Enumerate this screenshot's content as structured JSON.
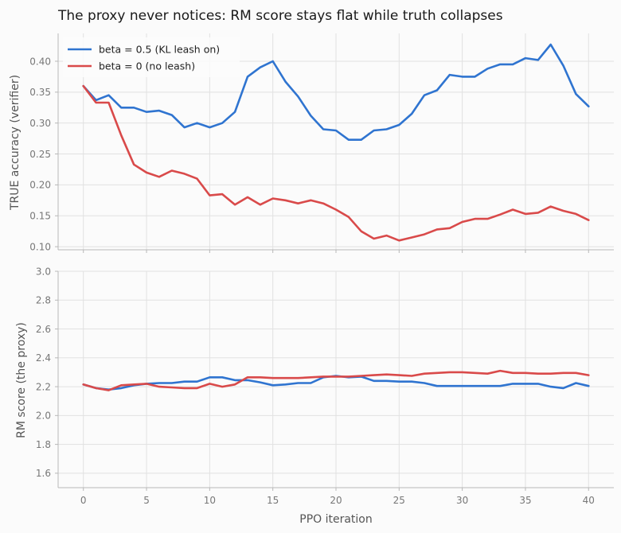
{
  "figure": {
    "title": "The proxy never notices: RM score stays flat while truth collapses"
  },
  "chart_data": [
    {
      "type": "line",
      "ylabel": "TRUE accuracy (verifier)",
      "xlabel": "",
      "xlim": [
        -2,
        42
      ],
      "ylim": [
        0.095,
        0.445
      ],
      "xticks": [
        0,
        5,
        10,
        15,
        20,
        25,
        30,
        35,
        40
      ],
      "xtick_labels_visible": false,
      "yticks": [
        0.1,
        0.15,
        0.2,
        0.25,
        0.3,
        0.35,
        0.4
      ],
      "ytick_labels": [
        "0.10",
        "0.15",
        "0.20",
        "0.25",
        "0.30",
        "0.35",
        "0.40"
      ],
      "grid": true,
      "legend": "top-left",
      "x": [
        0,
        1,
        2,
        3,
        4,
        5,
        6,
        7,
        8,
        9,
        10,
        11,
        12,
        13,
        14,
        15,
        16,
        17,
        18,
        19,
        20,
        21,
        22,
        23,
        24,
        25,
        26,
        27,
        28,
        29,
        30,
        31,
        32,
        33,
        34,
        35,
        36,
        37,
        38,
        39,
        40
      ],
      "series": [
        {
          "name": "beta = 0.5 (KL leash on)",
          "color": "#2f74d0",
          "values": [
            0.36,
            0.337,
            0.345,
            0.325,
            0.325,
            0.318,
            0.32,
            0.313,
            0.293,
            0.3,
            0.293,
            0.3,
            0.318,
            0.375,
            0.39,
            0.4,
            0.367,
            0.343,
            0.312,
            0.29,
            0.288,
            0.273,
            0.273,
            0.288,
            0.29,
            0.297,
            0.315,
            0.345,
            0.353,
            0.378,
            0.375,
            0.375,
            0.388,
            0.395,
            0.395,
            0.405,
            0.402,
            0.427,
            0.393,
            0.347,
            0.327
          ]
        },
        {
          "name": "beta = 0 (no leash)",
          "color": "#d94a4a",
          "values": [
            0.36,
            0.333,
            0.333,
            0.28,
            0.233,
            0.22,
            0.213,
            0.223,
            0.218,
            0.21,
            0.183,
            0.185,
            0.168,
            0.18,
            0.168,
            0.178,
            0.175,
            0.17,
            0.175,
            0.17,
            0.16,
            0.148,
            0.125,
            0.113,
            0.118,
            0.11,
            0.115,
            0.12,
            0.128,
            0.13,
            0.14,
            0.145,
            0.145,
            0.152,
            0.16,
            0.153,
            0.155,
            0.165,
            0.158,
            0.153,
            0.143
          ]
        }
      ]
    },
    {
      "type": "line",
      "ylabel": "RM score (the proxy)",
      "xlabel": "PPO iteration",
      "xlim": [
        -2,
        42
      ],
      "ylim": [
        1.5,
        3.0
      ],
      "xticks": [
        0,
        5,
        10,
        15,
        20,
        25,
        30,
        35,
        40
      ],
      "xtick_labels": [
        "0",
        "5",
        "10",
        "15",
        "20",
        "25",
        "30",
        "35",
        "40"
      ],
      "yticks": [
        1.6,
        1.8,
        2.0,
        2.2,
        2.4,
        2.6,
        2.8,
        3.0
      ],
      "ytick_labels": [
        "1.6",
        "1.8",
        "2.0",
        "2.2",
        "2.4",
        "2.6",
        "2.8",
        "3.0"
      ],
      "grid": true,
      "x": [
        0,
        1,
        2,
        3,
        4,
        5,
        6,
        7,
        8,
        9,
        10,
        11,
        12,
        13,
        14,
        15,
        16,
        17,
        18,
        19,
        20,
        21,
        22,
        23,
        24,
        25,
        26,
        27,
        28,
        29,
        30,
        31,
        32,
        33,
        34,
        35,
        36,
        37,
        38,
        39,
        40
      ],
      "series": [
        {
          "name": "beta = 0.5 (KL leash on)",
          "color": "#2f74d0",
          "values": [
            2.215,
            2.19,
            2.18,
            2.19,
            2.21,
            2.22,
            2.225,
            2.225,
            2.235,
            2.235,
            2.265,
            2.265,
            2.245,
            2.245,
            2.23,
            2.21,
            2.215,
            2.225,
            2.225,
            2.265,
            2.275,
            2.265,
            2.27,
            2.24,
            2.24,
            2.235,
            2.235,
            2.225,
            2.205,
            2.205,
            2.205,
            2.205,
            2.205,
            2.205,
            2.22,
            2.22,
            2.22,
            2.2,
            2.19,
            2.225,
            2.205
          ]
        },
        {
          "name": "beta = 0 (no leash)",
          "color": "#d94a4a",
          "values": [
            2.215,
            2.19,
            2.175,
            2.21,
            2.215,
            2.22,
            2.2,
            2.195,
            2.19,
            2.19,
            2.22,
            2.2,
            2.215,
            2.265,
            2.265,
            2.26,
            2.26,
            2.26,
            2.265,
            2.27,
            2.27,
            2.27,
            2.275,
            2.28,
            2.285,
            2.28,
            2.275,
            2.29,
            2.295,
            2.3,
            2.3,
            2.295,
            2.29,
            2.31,
            2.295,
            2.295,
            2.29,
            2.29,
            2.295,
            2.295,
            2.28
          ]
        }
      ]
    }
  ]
}
